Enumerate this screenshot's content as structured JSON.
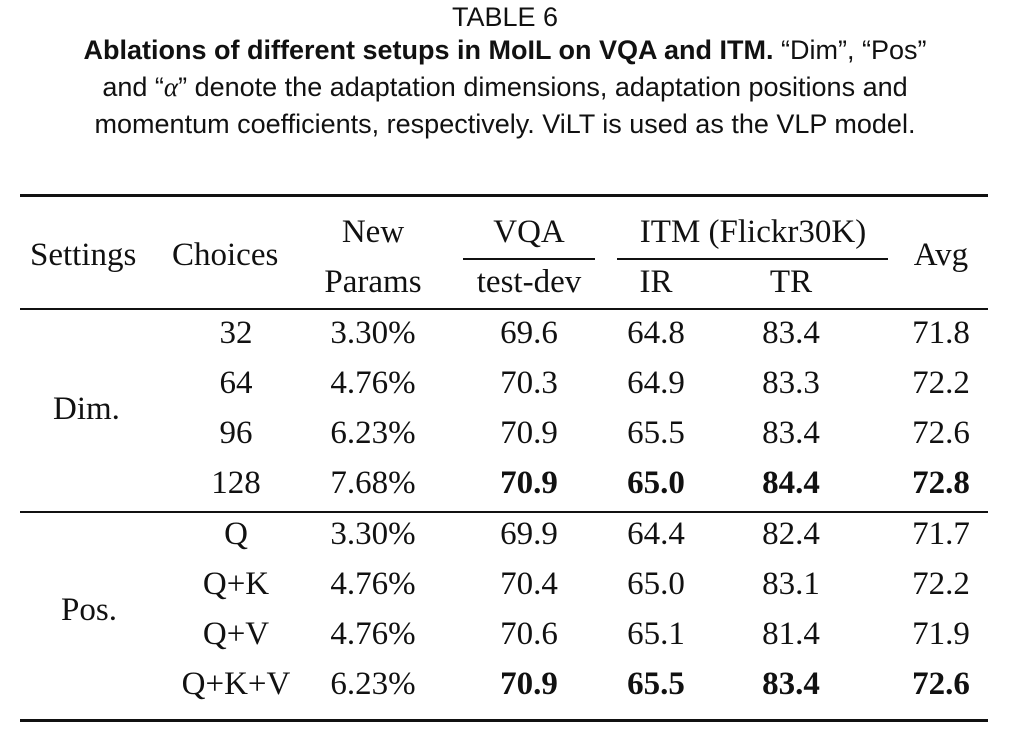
{
  "caption": {
    "label": "TABLE 6",
    "bold_text": "Ablations of different setups in MoIL on VQA and ITM.",
    "line1_rest": "“Dim”, “Pos”",
    "line2_pre": "and “",
    "alpha": "α",
    "line2_post": "” denote the adaptation dimensions, adaptation positions and",
    "line3": "momentum coefficients, respectively. ViLT is used as the VLP model."
  },
  "table": {
    "headers": {
      "settings": "Settings",
      "choices": "Choices",
      "new_top": "New",
      "new_bottom": "Params",
      "vqa": "VQA",
      "vqa_sub": "test-dev",
      "itm": "ITM (Flickr30K)",
      "ir": "IR",
      "tr": "TR",
      "avg": "Avg"
    },
    "groups": [
      {
        "name": "Dim.",
        "rows": [
          {
            "choice": "32",
            "params": "3.30%",
            "vqa": "69.6",
            "ir": "64.8",
            "tr": "83.4",
            "avg": "71.8",
            "bold": false
          },
          {
            "choice": "64",
            "params": "4.76%",
            "vqa": "70.3",
            "ir": "64.9",
            "tr": "83.3",
            "avg": "72.2",
            "bold": false
          },
          {
            "choice": "96",
            "params": "6.23%",
            "vqa": "70.9",
            "ir": "65.5",
            "tr": "83.4",
            "avg": "72.6",
            "bold": false
          },
          {
            "choice": "128",
            "params": "7.68%",
            "vqa": "70.9",
            "ir": "65.0",
            "tr": "84.4",
            "avg": "72.8",
            "bold": true
          }
        ]
      },
      {
        "name": "Pos.",
        "rows": [
          {
            "choice": "Q",
            "params": "3.30%",
            "vqa": "69.9",
            "ir": "64.4",
            "tr": "82.4",
            "avg": "71.7",
            "bold": false
          },
          {
            "choice": "Q+K",
            "params": "4.76%",
            "vqa": "70.4",
            "ir": "65.0",
            "tr": "83.1",
            "avg": "72.2",
            "bold": false
          },
          {
            "choice": "Q+V",
            "params": "4.76%",
            "vqa": "70.6",
            "ir": "65.1",
            "tr": "81.4",
            "avg": "71.9",
            "bold": false
          },
          {
            "choice": "Q+K+V",
            "params": "6.23%",
            "vqa": "70.9",
            "ir": "65.5",
            "tr": "83.4",
            "avg": "72.6",
            "bold": true
          }
        ]
      }
    ]
  }
}
